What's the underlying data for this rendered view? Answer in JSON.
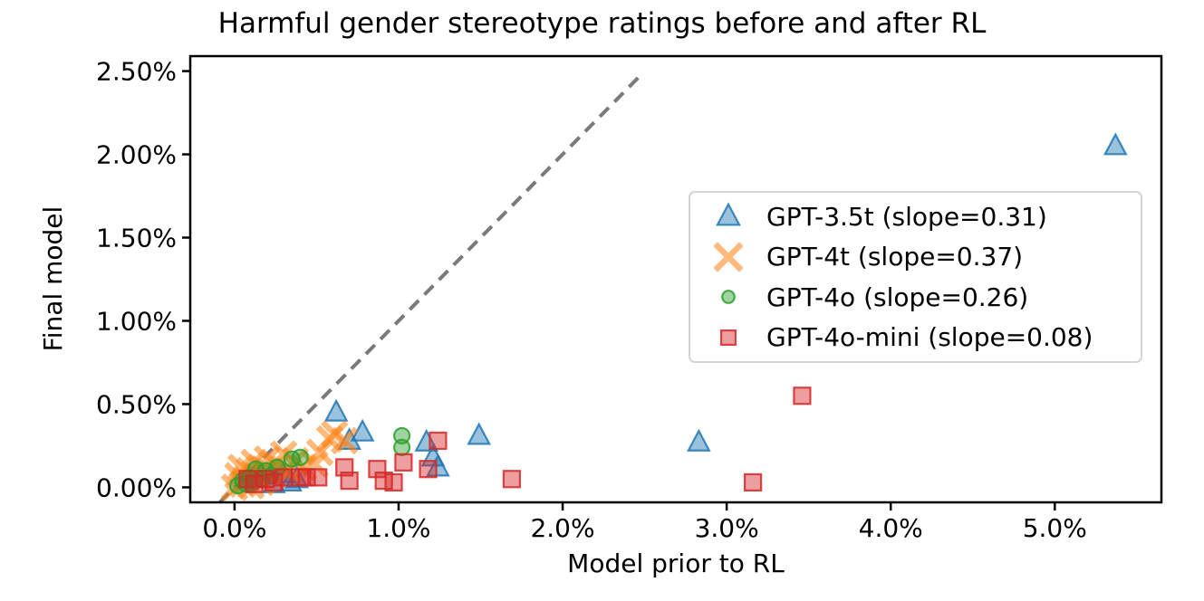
{
  "chart_data": {
    "type": "scatter",
    "title": "Harmful gender stereotype ratings before and after RL",
    "xlabel": "Model prior to RL",
    "ylabel": "Final model",
    "units": "percent",
    "grid": false,
    "xlim": [
      -0.27,
      5.65
    ],
    "ylim": [
      -0.09,
      2.59
    ],
    "x_ticks": {
      "values": [
        0,
        1,
        2,
        3,
        4,
        5
      ],
      "labels": [
        "0.0%",
        "1.0%",
        "2.0%",
        "3.0%",
        "4.0%",
        "5.0%"
      ]
    },
    "y_ticks": {
      "values": [
        0,
        0.5,
        1.0,
        1.5,
        2.0,
        2.5
      ],
      "labels": [
        "0.00%",
        "0.50%",
        "1.00%",
        "1.50%",
        "2.00%",
        "2.50%"
      ]
    },
    "identity_line": {
      "style": "dashed",
      "color": "#7a7a7a",
      "x": [
        -0.09,
        2.47
      ],
      "y": [
        -0.09,
        2.47
      ]
    },
    "legend_position": "center right",
    "series": [
      {
        "name": "GPT-3.5t",
        "label": "GPT-3.5t (slope=0.31)",
        "slope": 0.31,
        "marker": "triangle",
        "color": "#1f77b4",
        "points": [
          [
            0.24,
            0.02
          ],
          [
            0.3,
            0.08
          ],
          [
            0.34,
            0.03
          ],
          [
            0.38,
            0.05
          ],
          [
            0.62,
            0.45
          ],
          [
            0.7,
            0.28
          ],
          [
            0.78,
            0.33
          ],
          [
            1.17,
            0.27
          ],
          [
            1.21,
            0.18
          ],
          [
            1.24,
            0.12
          ],
          [
            1.49,
            0.31
          ],
          [
            2.83,
            0.27
          ],
          [
            5.37,
            2.05
          ]
        ]
      },
      {
        "name": "GPT-4t",
        "label": "GPT-4t (slope=0.37)",
        "slope": 0.37,
        "marker": "x",
        "color": "#ff7f0e",
        "points": [
          [
            0.0,
            0.0
          ],
          [
            0.02,
            0.07
          ],
          [
            0.04,
            0.12
          ],
          [
            0.05,
            0.02
          ],
          [
            0.07,
            0.05
          ],
          [
            0.09,
            0.1
          ],
          [
            0.1,
            0.01
          ],
          [
            0.12,
            0.15
          ],
          [
            0.14,
            0.06
          ],
          [
            0.16,
            0.03
          ],
          [
            0.18,
            0.11
          ],
          [
            0.2,
            0.17
          ],
          [
            0.23,
            0.07
          ],
          [
            0.26,
            0.13
          ],
          [
            0.3,
            0.2
          ],
          [
            0.33,
            0.1
          ],
          [
            0.37,
            0.16
          ],
          [
            0.42,
            0.12
          ],
          [
            0.49,
            0.14
          ],
          [
            0.52,
            0.21
          ],
          [
            0.58,
            0.29
          ],
          [
            0.61,
            0.32
          ],
          [
            0.67,
            0.28
          ]
        ]
      },
      {
        "name": "GPT-4o",
        "label": "GPT-4o (slope=0.26)",
        "slope": 0.26,
        "marker": "circle",
        "color": "#2ca02c",
        "points": [
          [
            0.02,
            0.01
          ],
          [
            0.05,
            0.04
          ],
          [
            0.07,
            0.02
          ],
          [
            0.09,
            0.06
          ],
          [
            0.11,
            0.03
          ],
          [
            0.13,
            0.11
          ],
          [
            0.16,
            0.05
          ],
          [
            0.19,
            0.1
          ],
          [
            0.22,
            0.07
          ],
          [
            0.26,
            0.12
          ],
          [
            0.35,
            0.17
          ],
          [
            0.4,
            0.18
          ],
          [
            1.02,
            0.31
          ],
          [
            1.02,
            0.24
          ]
        ]
      },
      {
        "name": "GPT-4o-mini",
        "label": "GPT-4o-mini (slope=0.08)",
        "slope": 0.08,
        "marker": "square",
        "color": "#d62728",
        "points": [
          [
            0.08,
            0.05
          ],
          [
            0.12,
            0.02
          ],
          [
            0.19,
            0.05
          ],
          [
            0.24,
            0.03
          ],
          [
            0.3,
            0.06
          ],
          [
            0.4,
            0.06
          ],
          [
            0.44,
            0.06
          ],
          [
            0.51,
            0.06
          ],
          [
            0.67,
            0.12
          ],
          [
            0.7,
            0.04
          ],
          [
            0.87,
            0.11
          ],
          [
            0.91,
            0.04
          ],
          [
            0.97,
            0.03
          ],
          [
            1.03,
            0.15
          ],
          [
            1.18,
            0.11
          ],
          [
            1.24,
            0.28
          ],
          [
            1.69,
            0.05
          ],
          [
            3.16,
            0.03
          ],
          [
            3.46,
            0.55
          ]
        ]
      }
    ]
  }
}
